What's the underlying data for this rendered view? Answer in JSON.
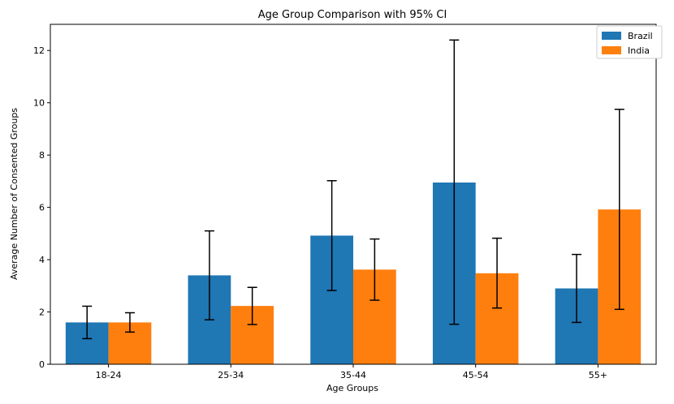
{
  "chart_data": {
    "type": "bar",
    "title": "Age Group Comparison with 95% CI",
    "xlabel": "Age Groups",
    "ylabel": "Average Number of Consented Groups",
    "categories": [
      "18-24",
      "25-34",
      "35-44",
      "45-54",
      "55+"
    ],
    "ylim": [
      0,
      13
    ],
    "yticks": [
      0,
      2,
      4,
      6,
      8,
      10,
      12
    ],
    "series": [
      {
        "name": "Brazil",
        "color": "#1f77b4",
        "values": [
          1.6,
          3.4,
          4.92,
          6.95,
          2.9
        ],
        "ci_low": [
          0.98,
          1.7,
          2.82,
          1.53,
          1.6
        ],
        "ci_high": [
          2.22,
          5.1,
          7.02,
          12.4,
          4.2
        ]
      },
      {
        "name": "India",
        "color": "#ff7f0e",
        "values": [
          1.6,
          2.23,
          3.62,
          3.48,
          5.92
        ],
        "ci_low": [
          1.23,
          1.52,
          2.45,
          2.15,
          2.1
        ],
        "ci_high": [
          1.97,
          2.94,
          4.79,
          4.82,
          9.75
        ]
      }
    ],
    "legend_position": "top-right"
  }
}
